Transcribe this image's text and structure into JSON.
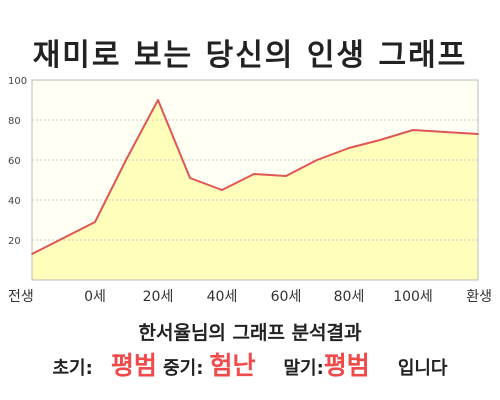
{
  "chart_data": {
    "type": "area",
    "title": "재미로 보는 당신의 인생 그래프",
    "x_categories": [
      "전생",
      "0세",
      "20세",
      "40세",
      "60세",
      "80세",
      "100세",
      "환생"
    ],
    "points": [
      {
        "x": "전생",
        "y": 13
      },
      {
        "x": "0세",
        "y": 29
      },
      {
        "x": "10세",
        "y": 60
      },
      {
        "x": "20세",
        "y": 90
      },
      {
        "x": "30세",
        "y": 51
      },
      {
        "x": "40세",
        "y": 45
      },
      {
        "x": "50세",
        "y": 53
      },
      {
        "x": "60세",
        "y": 52
      },
      {
        "x": "70세",
        "y": 60
      },
      {
        "x": "80세",
        "y": 66
      },
      {
        "x": "90세",
        "y": 70
      },
      {
        "x": "100세",
        "y": 75
      },
      {
        "x": "110세",
        "y": 74
      },
      {
        "x": "환생",
        "y": 73
      }
    ],
    "y_ticks": [
      20,
      40,
      60,
      80,
      100
    ],
    "ylim": [
      0,
      100
    ],
    "grid": true,
    "colors": {
      "fill": "#ffffbb",
      "line": "#e05555",
      "grid": "#cccccc",
      "border": "#bbbbbb"
    }
  },
  "result": {
    "heading": "한서율님의 그래프 분석결과",
    "early_label": "초기:",
    "early_value": "평범",
    "mid_label": "중기:",
    "mid_value": "험난",
    "late_label": "말기:",
    "late_value": "평범",
    "suffix": "입니다"
  }
}
